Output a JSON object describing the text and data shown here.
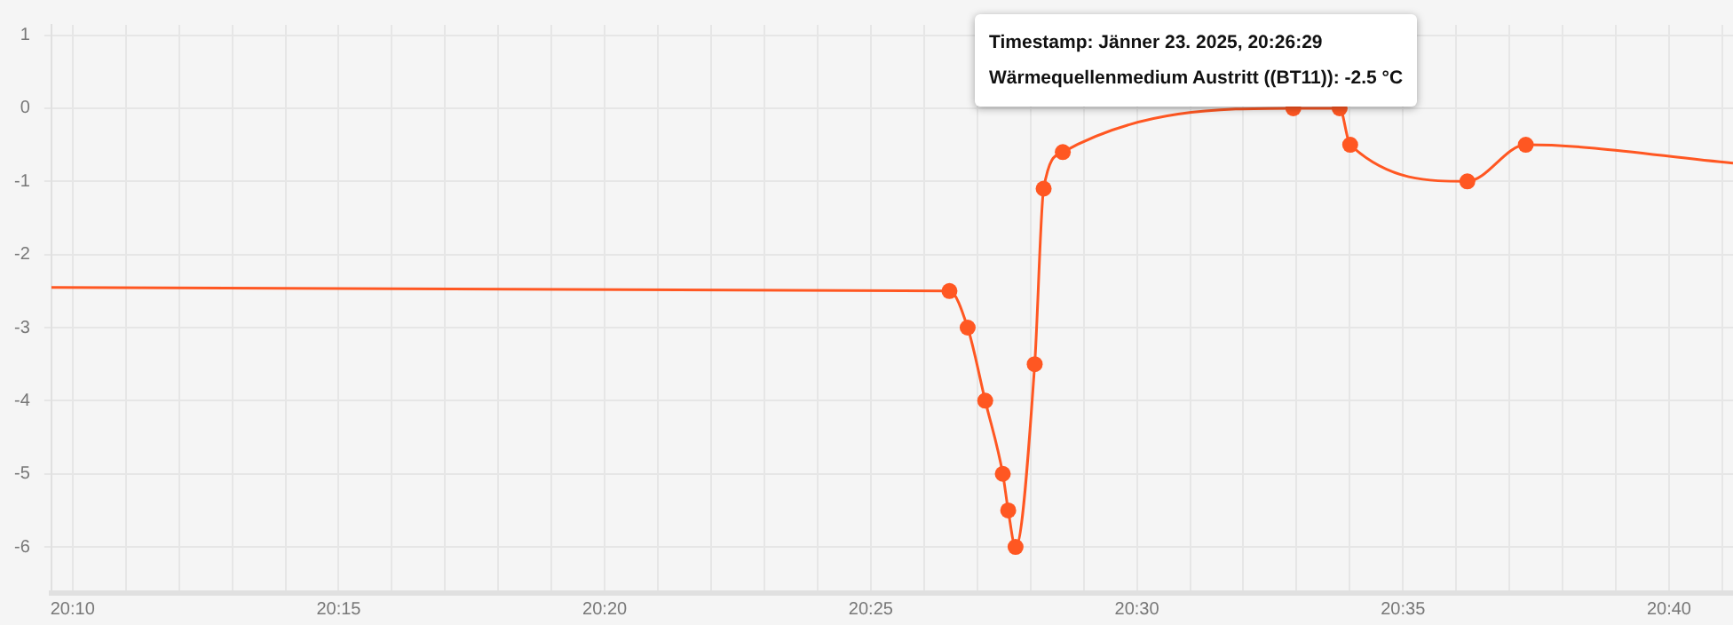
{
  "chart_data": {
    "type": "line",
    "x": [
      20.16,
      20.4413,
      20.447,
      20.4525,
      20.458,
      20.4597,
      20.462,
      20.468,
      20.4708,
      20.4768,
      20.549,
      20.5635,
      20.5668,
      20.6035,
      20.6218,
      20.6867
    ],
    "series": [
      {
        "color": "#ff5722",
        "values": [
          -2.45,
          -2.5,
          -3,
          -4,
          -5,
          -5.5,
          -6,
          -3.5,
          -1.1,
          -0.6,
          0,
          0,
          -0.5,
          -1,
          -0.5,
          -0.75
        ]
      }
    ],
    "xlim": [
      20.16,
      20.6867
    ],
    "xticks": [
      {
        "value": 20.16667,
        "label": "20:10"
      },
      {
        "value": 20.18333,
        "label": null
      },
      {
        "value": 20.2,
        "label": null
      },
      {
        "value": 20.21667,
        "label": null
      },
      {
        "value": 20.23333,
        "label": null
      },
      {
        "value": 20.25,
        "label": "20:15"
      },
      {
        "value": 20.26667,
        "label": null
      },
      {
        "value": 20.28333,
        "label": null
      },
      {
        "value": 20.3,
        "label": null
      },
      {
        "value": 20.31667,
        "label": null
      },
      {
        "value": 20.33333,
        "label": "20:20"
      },
      {
        "value": 20.35,
        "label": null
      },
      {
        "value": 20.36667,
        "label": null
      },
      {
        "value": 20.38333,
        "label": null
      },
      {
        "value": 20.4,
        "label": null
      },
      {
        "value": 20.41667,
        "label": "20:25"
      },
      {
        "value": 20.43333,
        "label": null
      },
      {
        "value": 20.45,
        "label": null
      },
      {
        "value": 20.46667,
        "label": null
      },
      {
        "value": 20.48333,
        "label": null
      },
      {
        "value": 20.5,
        "label": "20:30"
      },
      {
        "value": 20.51667,
        "label": null
      },
      {
        "value": 20.53333,
        "label": null
      },
      {
        "value": 20.55,
        "label": null
      },
      {
        "value": 20.56667,
        "label": null
      },
      {
        "value": 20.58333,
        "label": "20:35"
      },
      {
        "value": 20.6,
        "label": null
      },
      {
        "value": 20.61667,
        "label": null
      },
      {
        "value": 20.63333,
        "label": null
      },
      {
        "value": 20.65,
        "label": null
      },
      {
        "value": 20.66667,
        "label": "20:40"
      },
      {
        "value": 20.68333,
        "label": null
      }
    ],
    "ylim": [
      -6.63,
      1.14
    ],
    "yticks": [
      -6,
      -5,
      -4,
      -3,
      -2,
      -1,
      0,
      1
    ],
    "grid": true,
    "legend": false,
    "marker": "circle",
    "line_style": "solid",
    "annotations": [
      "Timestamp: Jänner 23. 2025, 20:26:29",
      "Wärmequellenmedium Austritt ((BT11)): -2.5 °C"
    ]
  }
}
